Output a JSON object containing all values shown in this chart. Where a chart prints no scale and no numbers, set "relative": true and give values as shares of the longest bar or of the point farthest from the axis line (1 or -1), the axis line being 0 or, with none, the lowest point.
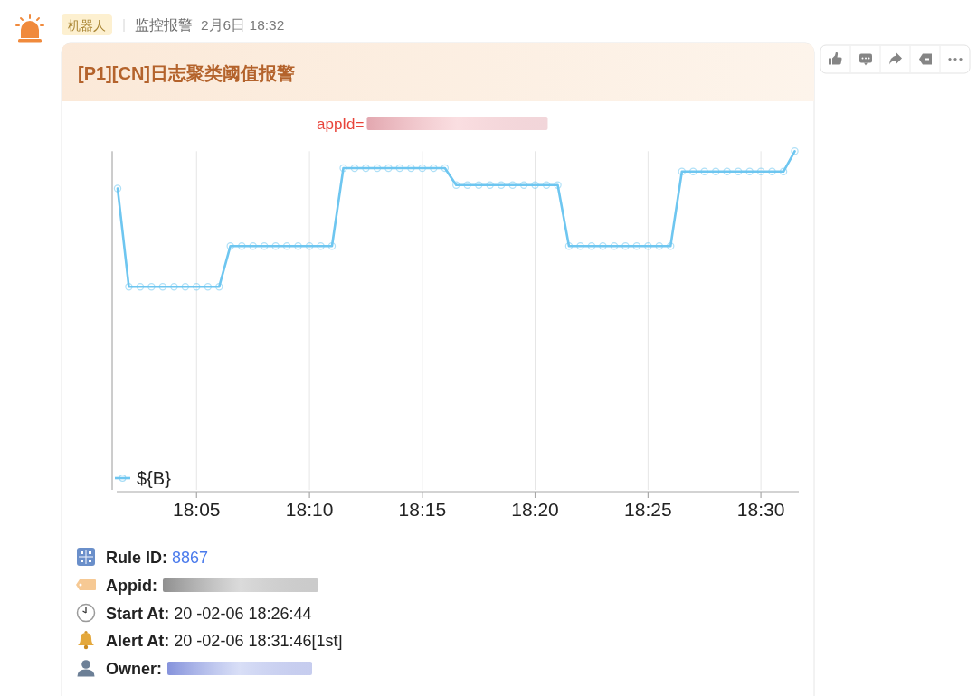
{
  "chart_data": {
    "type": "line",
    "title": "[P1][CN]日志聚类阈值报警",
    "subtitle": "appId=",
    "relative": true,
    "x": [
      18.025,
      18.0333,
      18.0417,
      18.05,
      18.0583,
      18.0667,
      18.075,
      18.0833,
      18.0917,
      18.1,
      18.1083,
      18.1167,
      18.125,
      18.1333,
      18.1417,
      18.15,
      18.1583,
      18.1667,
      18.175,
      18.1833,
      18.1917,
      18.2,
      18.2083,
      18.2167,
      18.225,
      18.2333,
      18.2417,
      18.25,
      18.2583,
      18.2667,
      18.275,
      18.2833,
      18.2917,
      18.3,
      18.3083,
      18.3167,
      18.325,
      18.3333,
      18.3417,
      18.35,
      18.3583,
      18.3667,
      18.375,
      18.3833,
      18.3917,
      18.4,
      18.4083,
      18.4167,
      18.425,
      18.4333,
      18.4417,
      18.45,
      18.4583,
      18.4667,
      18.475,
      18.4833,
      18.4917,
      18.5,
      18.5083,
      18.5167,
      18.525
    ],
    "xlim": [
      18.021,
      18.528
    ],
    "xticks": [
      {
        "value": 18.0833,
        "label": "18:05"
      },
      {
        "value": 18.1667,
        "label": "18:10"
      },
      {
        "value": 18.25,
        "label": "18:15"
      },
      {
        "value": 18.3333,
        "label": "18:20"
      },
      {
        "value": 18.4167,
        "label": "18:25"
      },
      {
        "value": 18.5,
        "label": "18:30"
      }
    ],
    "series": [
      {
        "name": "${B}",
        "color": "#6ec6f0",
        "values": [
          0.89,
          0.6,
          0.6,
          0.6,
          0.6,
          0.6,
          0.6,
          0.6,
          0.6,
          0.6,
          0.72,
          0.72,
          0.72,
          0.72,
          0.72,
          0.72,
          0.72,
          0.72,
          0.72,
          0.72,
          0.95,
          0.95,
          0.95,
          0.95,
          0.95,
          0.95,
          0.95,
          0.95,
          0.95,
          0.95,
          0.9,
          0.9,
          0.9,
          0.9,
          0.9,
          0.9,
          0.9,
          0.9,
          0.9,
          0.9,
          0.72,
          0.72,
          0.72,
          0.72,
          0.72,
          0.72,
          0.72,
          0.72,
          0.72,
          0.72,
          0.94,
          0.94,
          0.94,
          0.94,
          0.94,
          0.94,
          0.94,
          0.94,
          0.94,
          0.94,
          1
        ]
      }
    ],
    "marker": "circle",
    "grid": "x",
    "legend": "bottom left",
    "annotations": [
      "机器人",
      "监控报警",
      "2月6日 18:32",
      "Rule ID: 8867",
      "Appid:",
      "Start At: 20 -02-06 18:26:44",
      "Alert At: 20 -02-06 18:31:46[1st]",
      "Owner:"
    ]
  }
}
